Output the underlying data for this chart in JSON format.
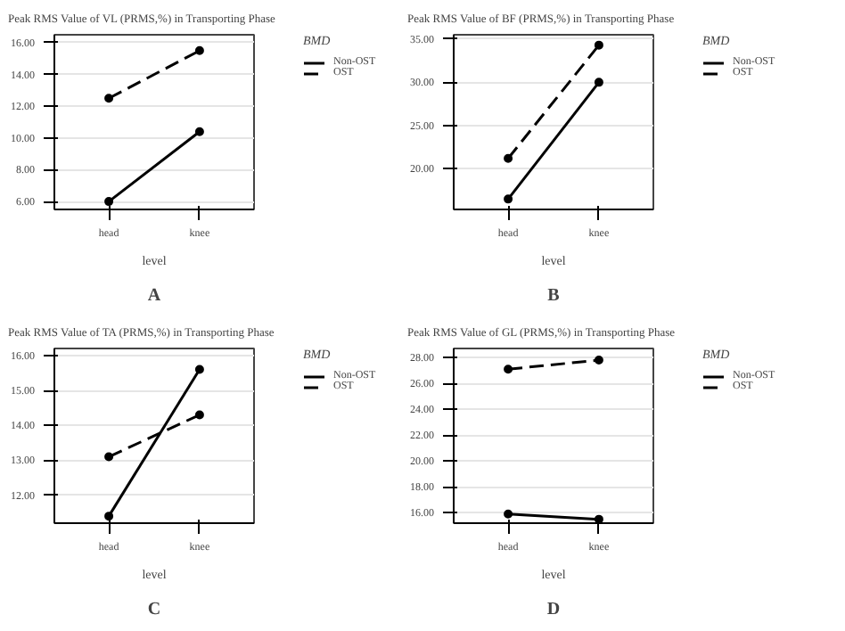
{
  "chart_data": [
    {
      "type": "line",
      "title": "Peak RMS Value of VL (PRMS,%) in Transporting Phase",
      "xlabel": "level",
      "legend_title": "BMD",
      "categories": [
        "head",
        "knee"
      ],
      "series": [
        {
          "name": "Non-OST",
          "color": "#000000",
          "values": [
            6.0,
            10.4
          ],
          "line_style": "solid"
        },
        {
          "name": "OST",
          "color": "#000000",
          "values": [
            12.5,
            15.5
          ],
          "line_style": "dashed"
        }
      ],
      "ylim": [
        5.5,
        16.5
      ],
      "yticks": [
        {
          "value": 6,
          "label": "6.00"
        },
        {
          "value": 8,
          "label": "8.00"
        },
        {
          "value": 10,
          "label": "10.00"
        },
        {
          "value": 12,
          "label": "12.00"
        },
        {
          "value": 14,
          "label": "14.00"
        },
        {
          "value": 16,
          "label": "16.00"
        }
      ],
      "grid": "y",
      "legend": "right",
      "marker": "circle",
      "annotations": [
        "A"
      ]
    },
    {
      "type": "line",
      "title": "Peak RMS Value of BF (PRMS,%) in Transporting Phase",
      "xlabel": "level",
      "legend_title": "BMD",
      "categories": [
        "head",
        "knee"
      ],
      "series": [
        {
          "name": "Non-OST",
          "color": "#000000",
          "values": [
            16.5,
            30.0
          ],
          "line_style": "solid"
        },
        {
          "name": "OST",
          "color": "#000000",
          "values": [
            21.2,
            34.3
          ],
          "line_style": "dashed"
        }
      ],
      "ylim": [
        15.3,
        35.5
      ],
      "yticks": [
        {
          "value": 20,
          "label": "20.00"
        },
        {
          "value": 25,
          "label": "25.00"
        },
        {
          "value": 30,
          "label": "30.00"
        },
        {
          "value": 35,
          "label": "35.00"
        }
      ],
      "grid": "y",
      "legend": "right",
      "marker": "circle",
      "annotations": [
        "B"
      ]
    },
    {
      "type": "line",
      "title": "Peak RMS Value of TA (PRMS,%) in Transporting Phase",
      "xlabel": "level",
      "legend_title": "BMD",
      "categories": [
        "head",
        "knee"
      ],
      "series": [
        {
          "name": "Non-OST",
          "color": "#000000",
          "values": [
            11.4,
            15.6
          ],
          "line_style": "solid"
        },
        {
          "name": "OST",
          "color": "#000000",
          "values": [
            13.1,
            14.3
          ],
          "line_style": "dashed"
        }
      ],
      "ylim": [
        11.2,
        16.2
      ],
      "yticks": [
        {
          "value": 12,
          "label": "12.00"
        },
        {
          "value": 13,
          "label": "13.00"
        },
        {
          "value": 14,
          "label": "14.00"
        },
        {
          "value": 15,
          "label": "15.00"
        },
        {
          "value": 16,
          "label": "16.00"
        }
      ],
      "grid": "y",
      "legend": "right",
      "marker": "circle",
      "annotations": [
        "C"
      ]
    },
    {
      "type": "line",
      "title": "Peak RMS Value of GL (PRMS,%) in Transporting Phase",
      "xlabel": "level",
      "legend_title": "BMD",
      "categories": [
        "head",
        "knee"
      ],
      "series": [
        {
          "name": "Non-OST",
          "color": "#000000",
          "values": [
            15.9,
            15.5
          ],
          "line_style": "solid"
        },
        {
          "name": "OST",
          "color": "#000000",
          "values": [
            27.1,
            27.8
          ],
          "line_style": "dashed"
        }
      ],
      "ylim": [
        15.2,
        28.7
      ],
      "yticks": [
        {
          "value": 16,
          "label": "16.00"
        },
        {
          "value": 18,
          "label": "18.00"
        },
        {
          "value": 20,
          "label": "20.00"
        },
        {
          "value": 22,
          "label": "22.00"
        },
        {
          "value": 24,
          "label": "24.00"
        },
        {
          "value": 26,
          "label": "26.00"
        },
        {
          "value": 28,
          "label": "28.00"
        }
      ],
      "grid": "y",
      "legend": "right",
      "marker": "circle",
      "annotations": [
        "D"
      ]
    }
  ]
}
